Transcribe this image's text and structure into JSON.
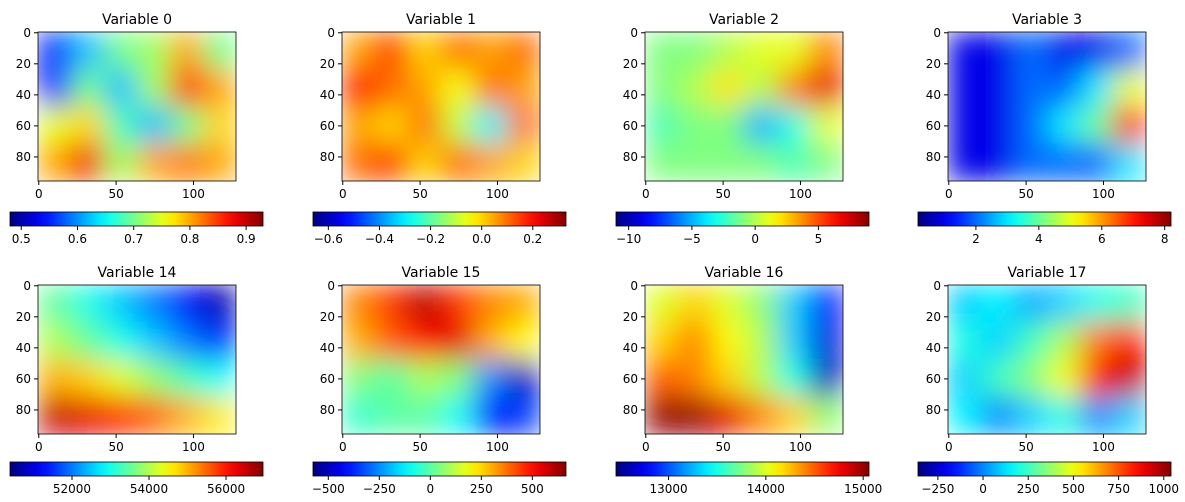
{
  "chart_data": [
    {
      "type": "heatmap",
      "title": "Variable 0",
      "colormap": "jet",
      "xlim": [
        -0.5,
        127.5
      ],
      "ylim": [
        95.5,
        -0.5
      ],
      "xticks": [
        0,
        50,
        100
      ],
      "yticks": [
        0,
        20,
        40,
        60,
        80
      ],
      "clim": [
        0.48,
        0.93
      ],
      "cticks": [
        0.5,
        0.6,
        0.7,
        0.8,
        0.9
      ],
      "z": [
        [
          0.55,
          0.62,
          0.7,
          0.72,
          0.8,
          0.7
        ],
        [
          0.55,
          0.7,
          0.62,
          0.72,
          0.85,
          0.8
        ],
        [
          0.75,
          0.78,
          0.68,
          0.62,
          0.7,
          0.78
        ],
        [
          0.8,
          0.88,
          0.72,
          0.8,
          0.82,
          0.8
        ]
      ]
    },
    {
      "type": "heatmap",
      "title": "Variable 1",
      "colormap": "jet",
      "xlim": [
        -0.5,
        127.5
      ],
      "ylim": [
        95.5,
        -0.5
      ],
      "xticks": [
        0,
        50,
        100
      ],
      "yticks": [
        0,
        20,
        40,
        60,
        80
      ],
      "clim": [
        -0.66,
        0.33
      ],
      "cticks": [
        {
          "value": -0.6,
          "label": "−0.6"
        },
        {
          "value": -0.4,
          "label": "−0.4"
        },
        {
          "value": -0.2,
          "label": "−0.2"
        },
        {
          "value": 0,
          "label": "0.0"
        },
        0.2
      ],
      "z": [
        [
          0.05,
          0.15,
          0.0,
          0.1,
          0.05,
          0.1
        ],
        [
          0.2,
          0.1,
          0.05,
          -0.05,
          0.1,
          0.05
        ],
        [
          0.05,
          0.0,
          0.1,
          -0.1,
          -0.3,
          0.1
        ],
        [
          0.1,
          0.15,
          0.0,
          0.1,
          0.05,
          0.0
        ]
      ]
    },
    {
      "type": "heatmap",
      "title": "Variable 2",
      "colormap": "jet",
      "xlim": [
        -0.5,
        127.5
      ],
      "ylim": [
        95.5,
        -0.5
      ],
      "xticks": [
        0,
        50,
        100
      ],
      "yticks": [
        0,
        20,
        40,
        60,
        80
      ],
      "clim": [
        -11,
        9
      ],
      "cticks": [
        {
          "value": -10,
          "label": "−10"
        },
        {
          "value": -5,
          "label": "−5"
        },
        0,
        5
      ],
      "z": [
        [
          -1,
          -1,
          0,
          1,
          1,
          4
        ],
        [
          -1,
          0,
          2,
          0,
          4,
          7
        ],
        [
          -2,
          -1,
          -1,
          -5,
          -3,
          1
        ],
        [
          -1,
          -1,
          -1,
          -1,
          -2,
          -1
        ]
      ]
    },
    {
      "type": "heatmap",
      "title": "Variable 3",
      "colormap": "jet",
      "xlim": [
        -0.5,
        127.5
      ],
      "ylim": [
        95.5,
        -0.5
      ],
      "xticks": [
        0,
        50,
        100
      ],
      "yticks": [
        0,
        20,
        40,
        60,
        80
      ],
      "clim": [
        0.16,
        8.2
      ],
      "cticks": [
        2,
        4,
        6,
        8
      ],
      "z": [
        [
          1,
          1,
          2,
          1,
          1,
          2
        ],
        [
          1,
          1,
          2,
          2,
          3,
          5
        ],
        [
          1,
          1,
          2,
          3,
          4,
          7
        ],
        [
          1,
          1,
          2,
          2,
          2,
          3
        ]
      ]
    },
    {
      "type": "heatmap",
      "title": "Variable 14",
      "colormap": "jet",
      "xlim": [
        -0.5,
        127.5
      ],
      "ylim": [
        95.5,
        -0.5
      ],
      "xticks": [
        0,
        50,
        100
      ],
      "yticks": [
        0,
        20,
        40,
        60,
        80
      ],
      "clim": [
        50390,
        56960
      ],
      "cticks": [
        52000,
        54000,
        56000
      ],
      "z": [
        [
          53500,
          53000,
          52500,
          52000,
          51200,
          50700
        ],
        [
          54000,
          53500,
          53000,
          52500,
          52000,
          51500
        ],
        [
          55000,
          54800,
          54300,
          53800,
          53300,
          52900
        ],
        [
          56500,
          56300,
          55900,
          55500,
          55000,
          54600
        ]
      ]
    },
    {
      "type": "heatmap",
      "title": "Variable 15",
      "colormap": "jet",
      "xlim": [
        -0.5,
        127.5
      ],
      "ylim": [
        95.5,
        -0.5
      ],
      "xticks": [
        0,
        50,
        100
      ],
      "yticks": [
        0,
        20,
        40,
        60,
        80
      ],
      "clim": [
        -575,
        665
      ],
      "cticks": [
        {
          "value": -500,
          "label": "−500"
        },
        {
          "value": -250,
          "label": "−250"
        },
        0,
        250,
        500
      ],
      "z": [
        [
          350,
          450,
          600,
          450,
          350,
          300
        ],
        [
          300,
          400,
          500,
          550,
          300,
          200
        ],
        [
          50,
          0,
          100,
          50,
          -250,
          -500
        ],
        [
          -50,
          0,
          0,
          -100,
          -400,
          -350
        ]
      ]
    },
    {
      "type": "heatmap",
      "title": "Variable 16",
      "colormap": "jet",
      "xlim": [
        -0.5,
        127.5
      ],
      "ylim": [
        95.5,
        -0.5
      ],
      "xticks": [
        0,
        50,
        100
      ],
      "yticks": [
        0,
        20,
        40,
        60,
        80
      ],
      "clim": [
        12460,
        15060
      ],
      "cticks": [
        13000,
        14000,
        15000
      ],
      "z": [
        [
          14000,
          14200,
          14000,
          13800,
          13300,
          12800
        ],
        [
          14200,
          14400,
          14100,
          13900,
          13300,
          12700
        ],
        [
          14500,
          14400,
          14200,
          13900,
          13500,
          12600
        ],
        [
          15000,
          15000,
          14800,
          14400,
          14200,
          13800
        ]
      ]
    },
    {
      "type": "heatmap",
      "title": "Variable 17",
      "colormap": "jet",
      "xlim": [
        -0.5,
        127.5
      ],
      "ylim": [
        95.5,
        -0.5
      ],
      "xticks": [
        0,
        50,
        100
      ],
      "yticks": [
        0,
        20,
        40,
        60,
        80
      ],
      "clim": [
        -360,
        1040
      ],
      "cticks": [
        {
          "value": -250,
          "label": "−250"
        },
        0,
        250,
        500,
        750,
        1000
      ],
      "z": [
        [
          100,
          150,
          50,
          100,
          200,
          250
        ],
        [
          200,
          100,
          250,
          400,
          700,
          850
        ],
        [
          100,
          250,
          350,
          500,
          850,
          950
        ],
        [
          150,
          0,
          100,
          200,
          0,
          100
        ]
      ]
    }
  ]
}
